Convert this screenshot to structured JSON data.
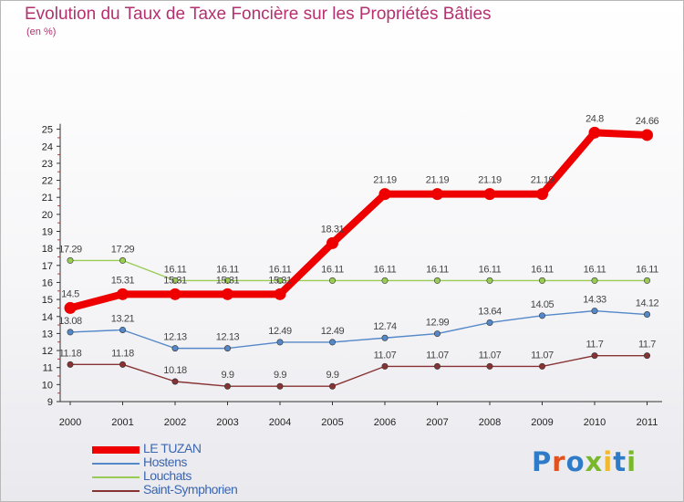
{
  "title": "Evolution du Taux de Taxe Foncière sur les Propriétés Bâties",
  "unit_label": "(en %)",
  "logo": {
    "text": "Proxiti",
    "letter_colors": [
      "#2e7cc8",
      "#e0531f",
      "#2e7cc8",
      "#7ab82b",
      "#f0b92e",
      "#2e7cc8",
      "#7ab82b"
    ]
  },
  "chart_data": {
    "type": "line",
    "title": "Evolution du Taux de Taxe Foncière sur les Propriétés Bâties",
    "ylabel": "(en %)",
    "xlabel": "",
    "categories": [
      "2000",
      "2001",
      "2002",
      "2003",
      "2004",
      "2005",
      "2006",
      "2007",
      "2008",
      "2009",
      "2010",
      "2011"
    ],
    "y_ticks": [
      "9",
      "10",
      "11",
      "12",
      "13",
      "14",
      "15",
      "16",
      "17",
      "18",
      "19",
      "20",
      "21",
      "22",
      "23",
      "24",
      "25"
    ],
    "ylim": [
      9,
      25
    ],
    "grid": false,
    "legend": "bottom-left",
    "series": [
      {
        "name": "LE TUZAN",
        "color": "#ee0000",
        "emphasis": true,
        "values": [
          14.5,
          15.31,
          15.31,
          15.31,
          15.31,
          18.31,
          21.19,
          21.19,
          21.19,
          21.19,
          24.8,
          24.66
        ],
        "labels": [
          "14.5",
          "15.31",
          "15.31",
          "15.31",
          "15.31",
          "18.31",
          "21.19",
          "21.19",
          "21.19",
          "21.19",
          "24.8",
          "24.66"
        ]
      },
      {
        "name": "Hostens",
        "color": "#5588c8",
        "values": [
          13.08,
          13.21,
          12.13,
          12.13,
          12.49,
          12.49,
          12.74,
          12.99,
          13.64,
          14.05,
          14.33,
          14.12
        ],
        "labels": [
          "13.08",
          "13.21",
          "12.13",
          "12.13",
          "12.49",
          "12.49",
          "12.74",
          "12.99",
          "13.64",
          "14.05",
          "14.33",
          "14.12"
        ]
      },
      {
        "name": "Louchats",
        "color": "#99cc55",
        "values": [
          17.29,
          17.29,
          16.11,
          16.11,
          16.11,
          16.11,
          16.11,
          16.11,
          16.11,
          16.11,
          16.11,
          16.11
        ],
        "labels": [
          "17.29",
          "17.29",
          "16.11",
          "16.11",
          "16.11",
          "16.11",
          "16.11",
          "16.11",
          "16.11",
          "16.11",
          "16.11",
          "16.11"
        ]
      },
      {
        "name": "Saint-Symphorien",
        "color": "#883333",
        "values": [
          11.18,
          11.18,
          10.18,
          9.9,
          9.9,
          9.9,
          11.07,
          11.07,
          11.07,
          11.07,
          11.7,
          11.7
        ],
        "labels": [
          "11.18",
          "11.18",
          "10.18",
          "9.9",
          "9.9",
          "9.9",
          "11.07",
          "11.07",
          "11.07",
          "11.07",
          "11.7",
          "11.7"
        ]
      }
    ]
  }
}
